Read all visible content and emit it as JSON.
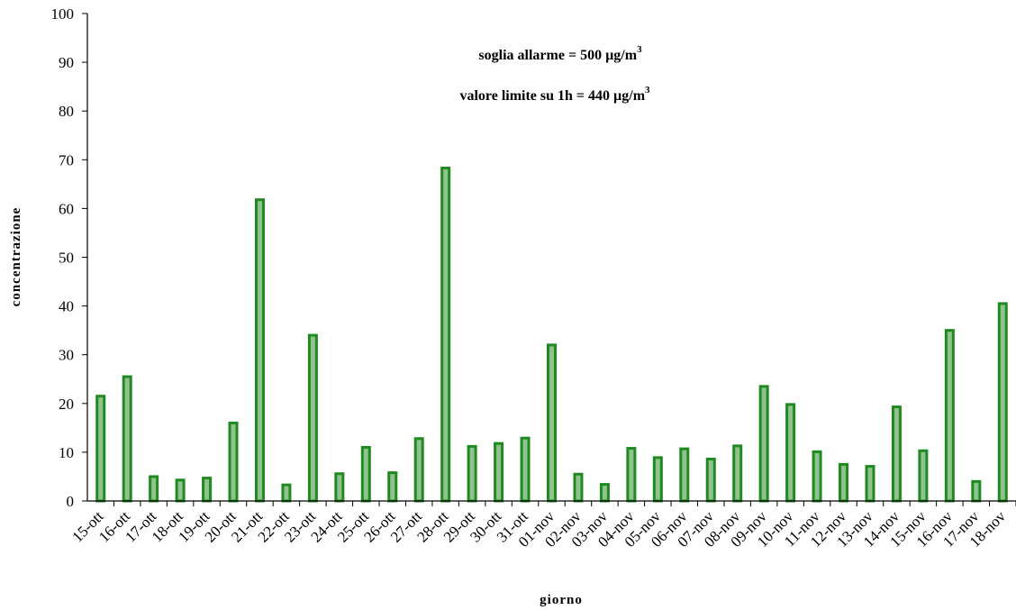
{
  "chart_data": {
    "type": "bar",
    "xlabel": "giorno",
    "ylabel": "concentrazione",
    "ylim": [
      0,
      100
    ],
    "yticks": [
      0,
      10,
      20,
      30,
      40,
      50,
      60,
      70,
      80,
      90,
      100
    ],
    "grid": false,
    "bar_color": "#1f8a1f",
    "bar_highlight": "#8fc28f",
    "annotations": [
      {
        "text": "soglia allarme = 500 µg/m",
        "sup": "3"
      },
      {
        "text": "valore limite su 1h = 440 µg/m",
        "sup": "3"
      }
    ],
    "categories": [
      "15-ott",
      "16-ott",
      "17-ott",
      "18-ott",
      "19-ott",
      "20-ott",
      "21-ott",
      "22-ott",
      "23-ott",
      "24-ott",
      "25-ott",
      "26-ott",
      "27-ott",
      "28-ott",
      "29-ott",
      "30-ott",
      "31-ott",
      "01-nov",
      "02-nov",
      "03-nov",
      "04-nov",
      "05-nov",
      "06-nov",
      "07-nov",
      "08-nov",
      "09-nov",
      "10-nov",
      "11-nov",
      "12-nov",
      "13-nov",
      "14-nov",
      "15-nov",
      "16-nov",
      "17-nov",
      "18-nov"
    ],
    "values": [
      21.5,
      25.5,
      5,
      4.3,
      4.7,
      16,
      61.8,
      3.3,
      34,
      5.6,
      11,
      5.8,
      12.8,
      68.3,
      11.2,
      11.8,
      12.9,
      32,
      5.5,
      3.4,
      10.8,
      8.9,
      10.7,
      8.6,
      11.3,
      23.5,
      19.8,
      10.1,
      7.5,
      7.1,
      19.3,
      10.3,
      35,
      4,
      40.5
    ]
  }
}
